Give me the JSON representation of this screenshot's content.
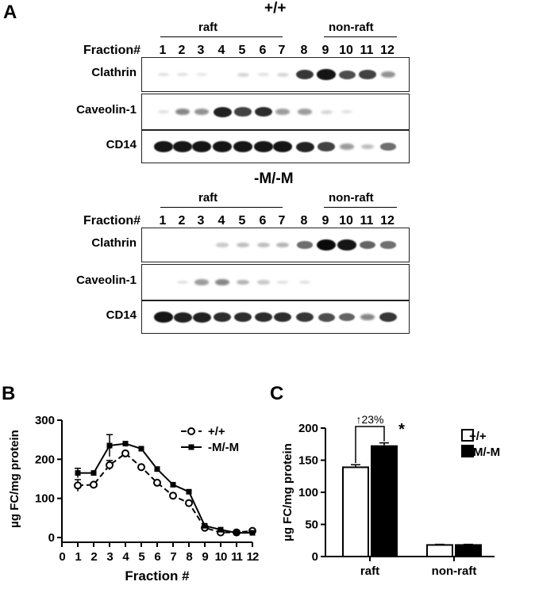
{
  "panel_a": {
    "letter": "A",
    "top": {
      "genotype": "+/+",
      "raft_label": "raft",
      "nonraft_label": "non-raft",
      "fraction_label": "Fraction#",
      "fractions": [
        "1",
        "2",
        "3",
        "4",
        "5",
        "6",
        "7",
        "8",
        "9",
        "10",
        "11",
        "12"
      ],
      "blots": [
        {
          "label": "Clathrin",
          "intensity": [
            0.05,
            0.05,
            0.02,
            0.0,
            0.1,
            0.05,
            0.1,
            0.8,
            0.95,
            0.7,
            0.75,
            0.4
          ]
        },
        {
          "label": "Caveolin-1",
          "intensity": [
            0.05,
            0.45,
            0.4,
            0.9,
            0.75,
            0.85,
            0.35,
            0.35,
            0.1,
            0.05,
            0.0,
            0.0
          ]
        },
        {
          "label": "CD14",
          "intensity": [
            0.95,
            0.95,
            0.95,
            0.95,
            0.95,
            0.95,
            0.95,
            0.9,
            0.75,
            0.35,
            0.2,
            0.55
          ]
        }
      ]
    },
    "bottom": {
      "genotype": "-M/-M",
      "raft_label": "raft",
      "nonraft_label": "non-raft",
      "fraction_label": "Fraction#",
      "fractions": [
        "1",
        "2",
        "3",
        "4",
        "5",
        "6",
        "7",
        "8",
        "9",
        "10",
        "11",
        "12"
      ],
      "blots": [
        {
          "label": "Clathrin",
          "intensity": [
            0.0,
            0.0,
            0.0,
            0.15,
            0.2,
            0.2,
            0.25,
            0.55,
            1.0,
            0.95,
            0.6,
            0.55
          ]
        },
        {
          "label": "Caveolin-1",
          "intensity": [
            0.0,
            0.05,
            0.35,
            0.45,
            0.25,
            0.15,
            0.05,
            0.05,
            0.0,
            0.0,
            0.0,
            0.0
          ]
        },
        {
          "label": "CD14",
          "intensity": [
            0.95,
            0.9,
            0.9,
            0.85,
            0.85,
            0.85,
            0.85,
            0.8,
            0.7,
            0.6,
            0.45,
            0.8
          ]
        }
      ]
    }
  },
  "panel_b": {
    "letter": "B"
  },
  "panel_c": {
    "letter": "C"
  },
  "chart_data": [
    {
      "type": "line",
      "ylabel": "µg FC/mg protein",
      "xlabel": "Fraction #",
      "xlim": [
        0,
        12
      ],
      "ylim": [
        0,
        300
      ],
      "x_ticks": [
        0,
        1,
        2,
        3,
        4,
        5,
        6,
        7,
        8,
        9,
        10,
        11,
        12
      ],
      "y_ticks": [
        0,
        100,
        200,
        300
      ],
      "legend_position": "top-right",
      "x": [
        1,
        2,
        3,
        4,
        5,
        6,
        7,
        8,
        9,
        10,
        11,
        12
      ],
      "series": [
        {
          "name": "+/+",
          "marker": "open-circle",
          "style": "dashed",
          "values": [
            133,
            135,
            185,
            215,
            180,
            140,
            107,
            88,
            25,
            13,
            13,
            17
          ],
          "errors": [
            15,
            0,
            12,
            0,
            0,
            0,
            0,
            0,
            0,
            0,
            0,
            0
          ]
        },
        {
          "name": "-M/-M",
          "marker": "filled-square",
          "style": "solid",
          "values": [
            165,
            165,
            235,
            240,
            227,
            175,
            135,
            117,
            30,
            20,
            12,
            12
          ],
          "errors": [
            12,
            0,
            28,
            0,
            0,
            0,
            0,
            0,
            0,
            0,
            0,
            0
          ]
        }
      ]
    },
    {
      "type": "bar",
      "ylabel": "µg FC/mg protein",
      "categories": [
        "raft",
        "non-raft"
      ],
      "ylim": [
        0,
        200
      ],
      "y_ticks": [
        0,
        50,
        100,
        150,
        200
      ],
      "legend_position": "top-right",
      "series": [
        {
          "name": "+/+",
          "color": "#ffffff",
          "values": [
            139,
            18
          ],
          "errors": [
            4,
            1
          ]
        },
        {
          "name": "-M/-M",
          "color": "#000000",
          "values": [
            172,
            18
          ],
          "errors": [
            5,
            1
          ]
        }
      ],
      "annotations": [
        {
          "text": "↑23%"
        },
        {
          "text": "*"
        }
      ]
    }
  ]
}
